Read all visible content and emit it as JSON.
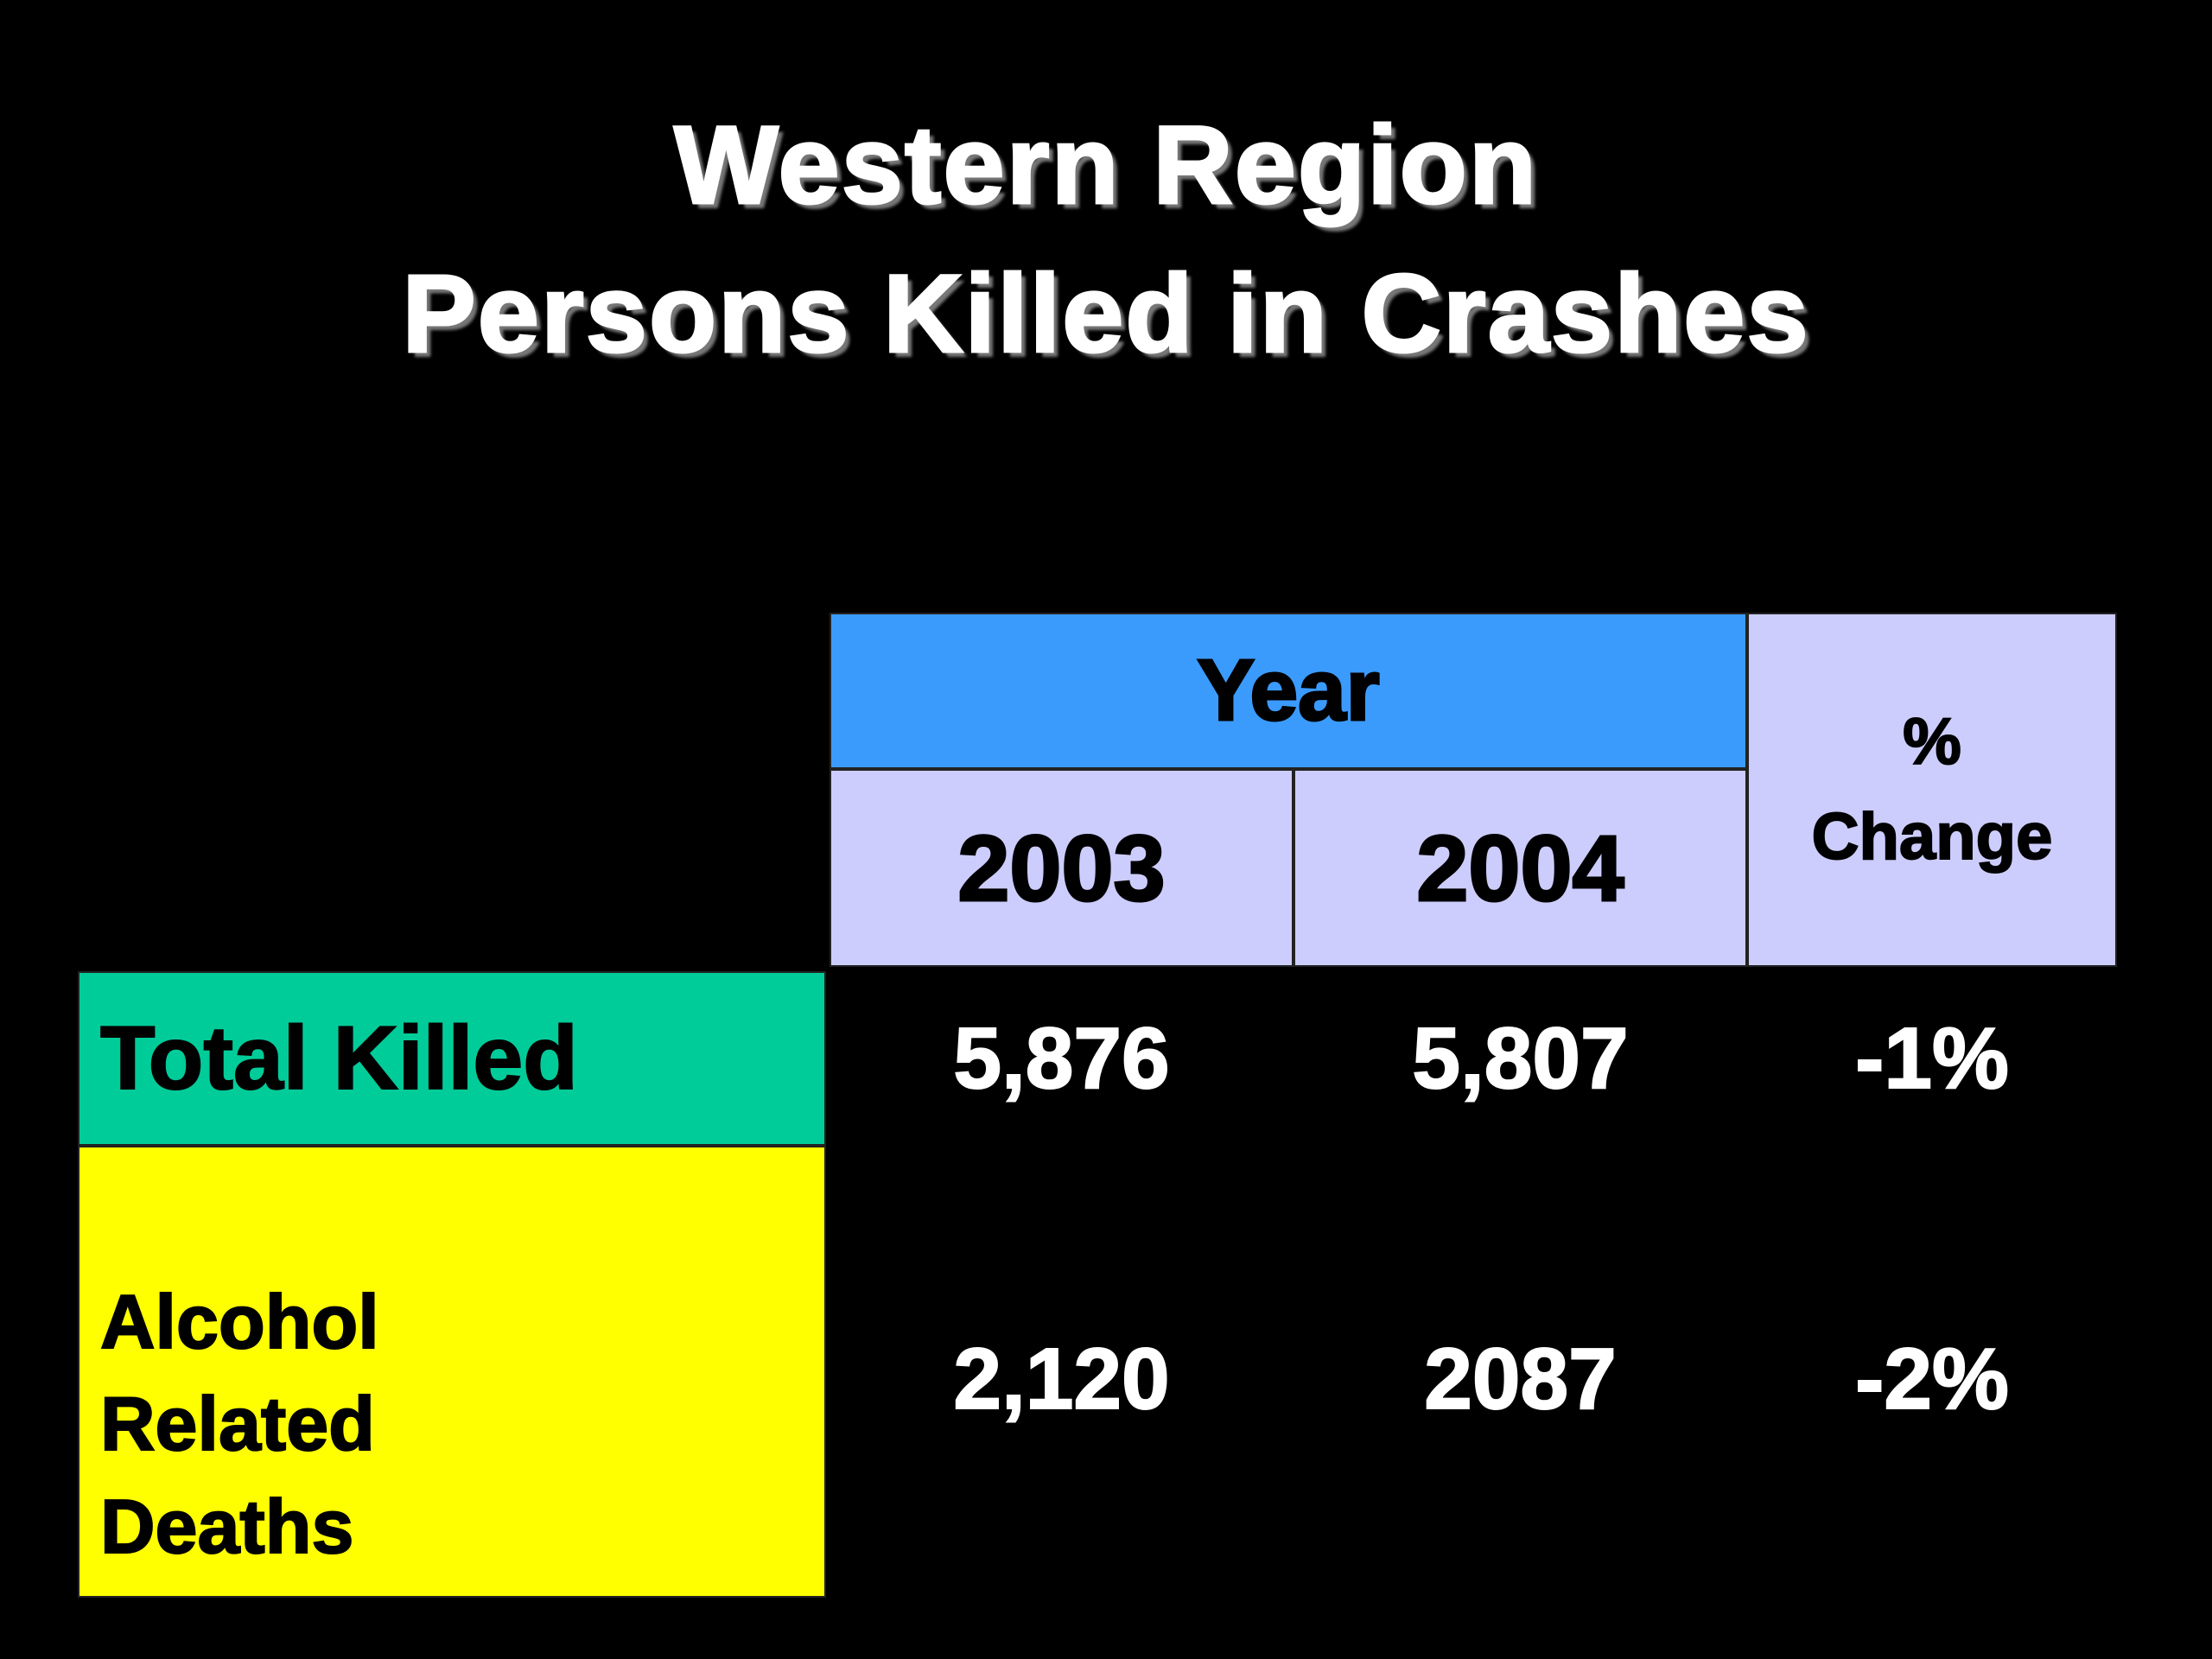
{
  "title_lines": [
    "Western Region",
    "Persons Killed in Crashes"
  ],
  "table": {
    "group_header": "Year",
    "change_header": "% Change",
    "years": [
      "2003",
      "2004"
    ],
    "rows": [
      [
        "Total Killed",
        "5,876",
        "5,807",
        "-1%"
      ],
      [
        "Alcohol Related Deaths",
        "2,120",
        "2087",
        "-2%"
      ]
    ]
  }
}
